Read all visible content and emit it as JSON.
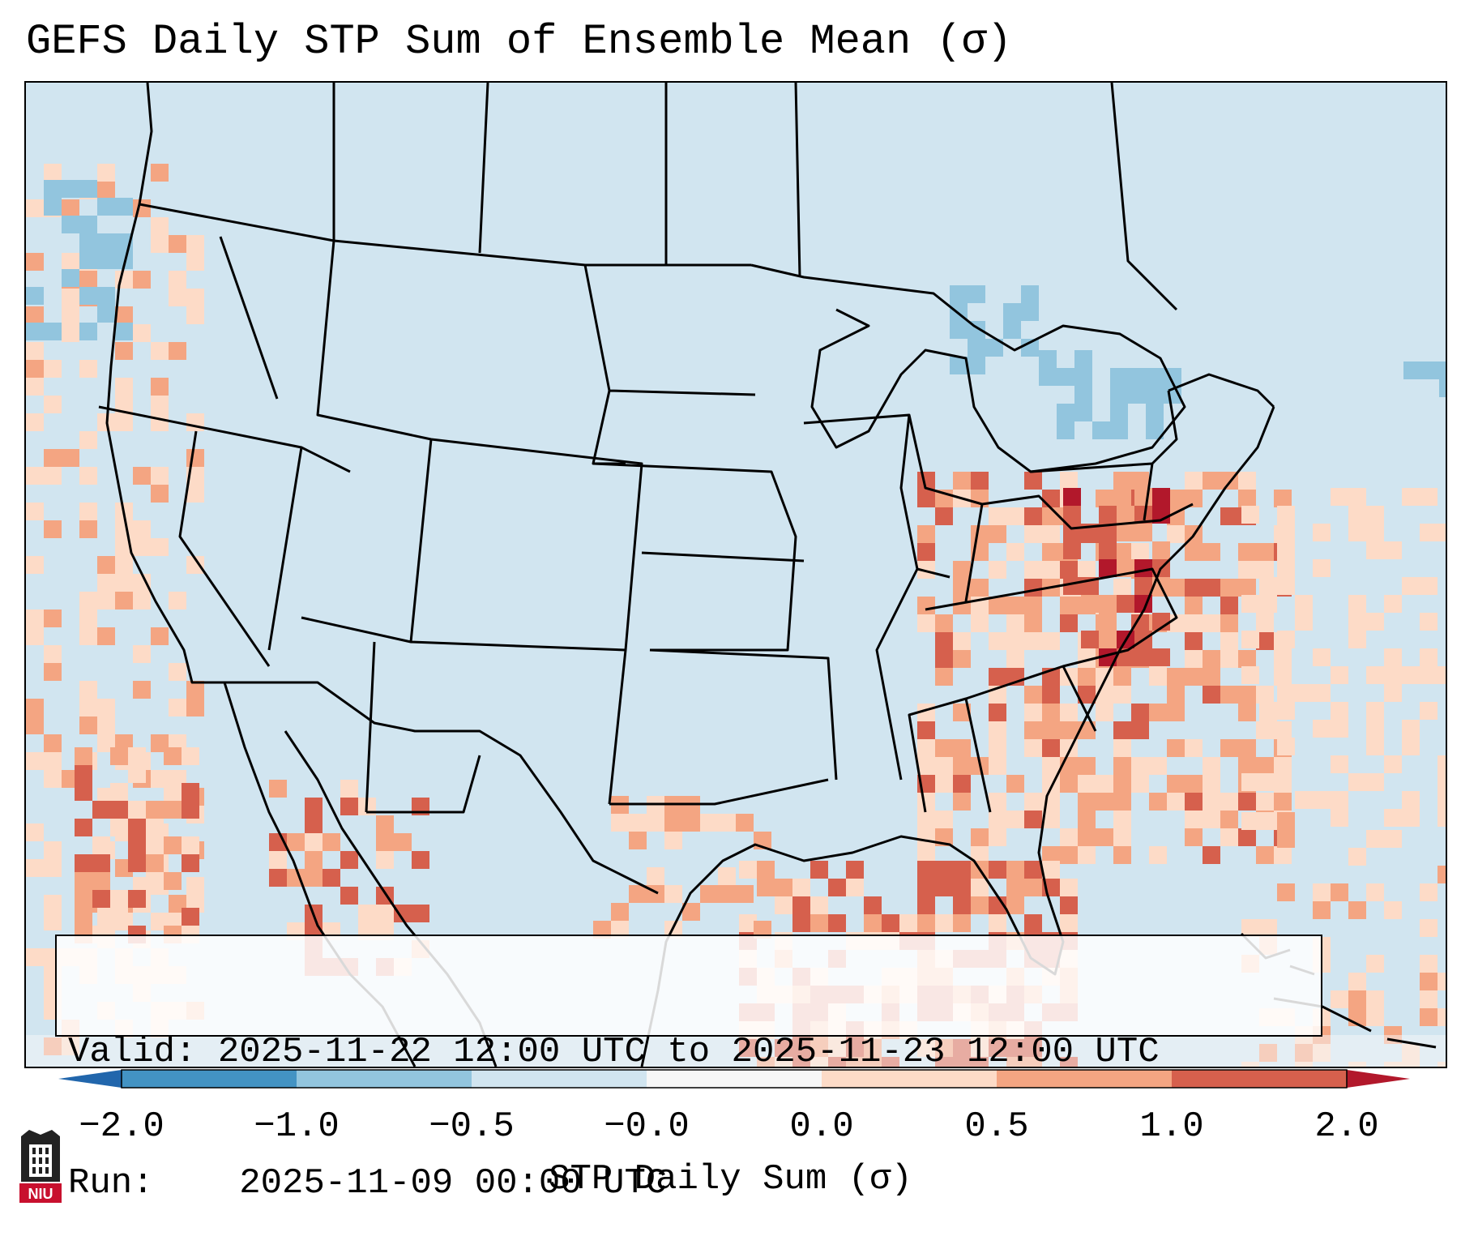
{
  "title": "GEFS Daily STP Sum of Ensemble Mean (σ)",
  "info_box": {
    "valid_label": "Valid:",
    "valid_value": "2025-11-22 12:00 UTC to 2025-11-23 12:00 UTC",
    "run_label": "Run:",
    "run_value": "2025-11-09 00:00 UTC"
  },
  "colorbar": {
    "label": "STP Daily Sum (σ)",
    "ticks": [
      "−2.0",
      "−1.0",
      "−0.5",
      "−0.0",
      "0.0",
      "0.5",
      "1.0",
      "2.0"
    ],
    "colors": [
      "#4393c3",
      "#92c5de",
      "#d1e5f0",
      "#f7f7f7",
      "#fddbc7",
      "#f4a582",
      "#d6604d"
    ],
    "extend_low_color": "#2166ac",
    "extend_high_color": "#b2182b"
  },
  "map": {
    "background_color": "#d1e5f0",
    "field": "STP Daily Sum anomaly (σ)",
    "max_region": "Virginia / Chesapeake Bay",
    "min_region": "Great Lakes / New England"
  },
  "logo": {
    "text": "NIU"
  }
}
